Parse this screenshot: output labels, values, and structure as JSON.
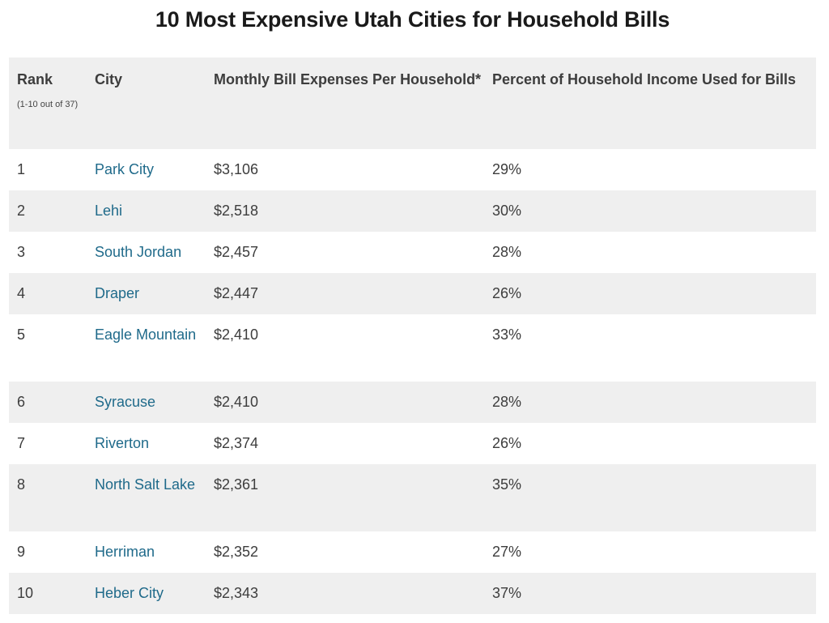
{
  "title": "10 Most Expensive Utah Cities for Household Bills",
  "table": {
    "headers": {
      "rank": "Rank",
      "rank_note": "(1-10 out of 37)",
      "city": "City",
      "expenses": "Monthly Bill Expenses Per Household*",
      "percent": "Percent of Household Income Used for Bills"
    },
    "rows": [
      {
        "rank": "1",
        "city": "Park City",
        "expenses": "$3,106",
        "percent": "29%"
      },
      {
        "rank": "2",
        "city": "Lehi",
        "expenses": "$2,518",
        "percent": "30%"
      },
      {
        "rank": "3",
        "city": "South Jordan",
        "expenses": "$2,457",
        "percent": "28%"
      },
      {
        "rank": "4",
        "city": "Draper",
        "expenses": "$2,447",
        "percent": "26%"
      },
      {
        "rank": "5",
        "city": "Eagle Mountain",
        "expenses": "$2,410",
        "percent": "33%"
      },
      {
        "rank": "6",
        "city": "Syracuse",
        "expenses": "$2,410",
        "percent": "28%"
      },
      {
        "rank": "7",
        "city": "Riverton",
        "expenses": "$2,374",
        "percent": "26%"
      },
      {
        "rank": "8",
        "city": "North Salt Lake",
        "expenses": "$2,361",
        "percent": "35%"
      },
      {
        "rank": "9",
        "city": "Herriman",
        "expenses": "$2,352",
        "percent": "27%"
      },
      {
        "rank": "10",
        "city": "Heber City",
        "expenses": "$2,343",
        "percent": "37%"
      }
    ]
  },
  "colors": {
    "link": "#1f6a8a",
    "header_bg": "#efefef",
    "stripe_bg": "#efefef",
    "text": "#3d3d3d"
  }
}
